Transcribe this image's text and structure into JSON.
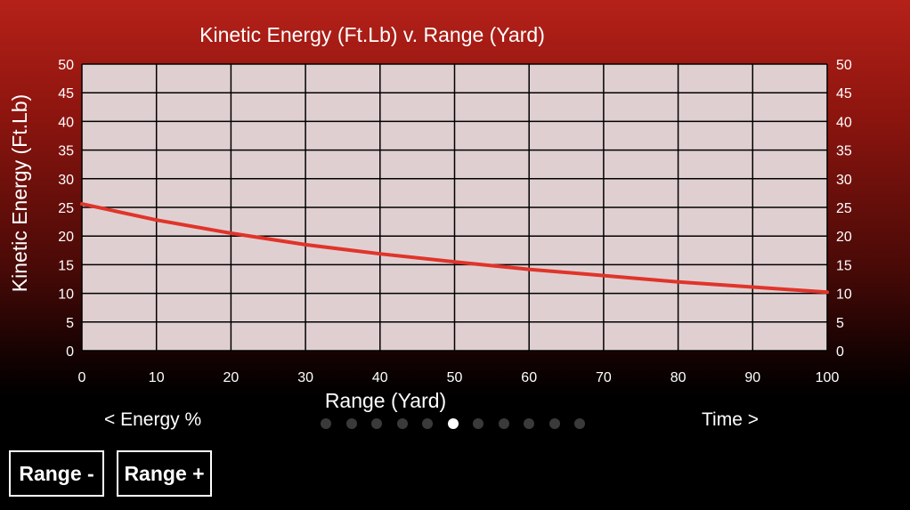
{
  "chart_data": {
    "type": "line",
    "title": "Kinetic Energy (Ft.Lb) v. Range (Yard)",
    "xlabel": "Range (Yard)",
    "ylabel": "Kinetic Energy (Ft.Lb)",
    "xlim": [
      0,
      100
    ],
    "ylim": [
      0,
      50
    ],
    "x_ticks": [
      "0",
      "10",
      "20",
      "30",
      "40",
      "50",
      "60",
      "70",
      "80",
      "90",
      "100"
    ],
    "y_ticks": [
      "0",
      "5",
      "10",
      "15",
      "20",
      "25",
      "30",
      "35",
      "40",
      "45",
      "50"
    ],
    "grid": true,
    "series": [
      {
        "x": [
          0,
          10,
          20,
          30,
          40,
          50,
          60,
          70,
          80,
          90,
          100
        ],
        "values": [
          25.6,
          22.8,
          20.5,
          18.5,
          16.9,
          15.5,
          14.2,
          13.1,
          12.0,
          11.1,
          10.2
        ],
        "color": "#e0342a"
      }
    ],
    "colors": {
      "plot_background": "#e0cfd1",
      "grid": "#000000",
      "line": "#e0342a"
    }
  },
  "nav": {
    "prev_label": "< Energy %",
    "next_label": "Time >",
    "page_count": 11,
    "active_page": 6
  },
  "buttons": {
    "range_minus": "Range -",
    "range_plus": "Range +"
  }
}
